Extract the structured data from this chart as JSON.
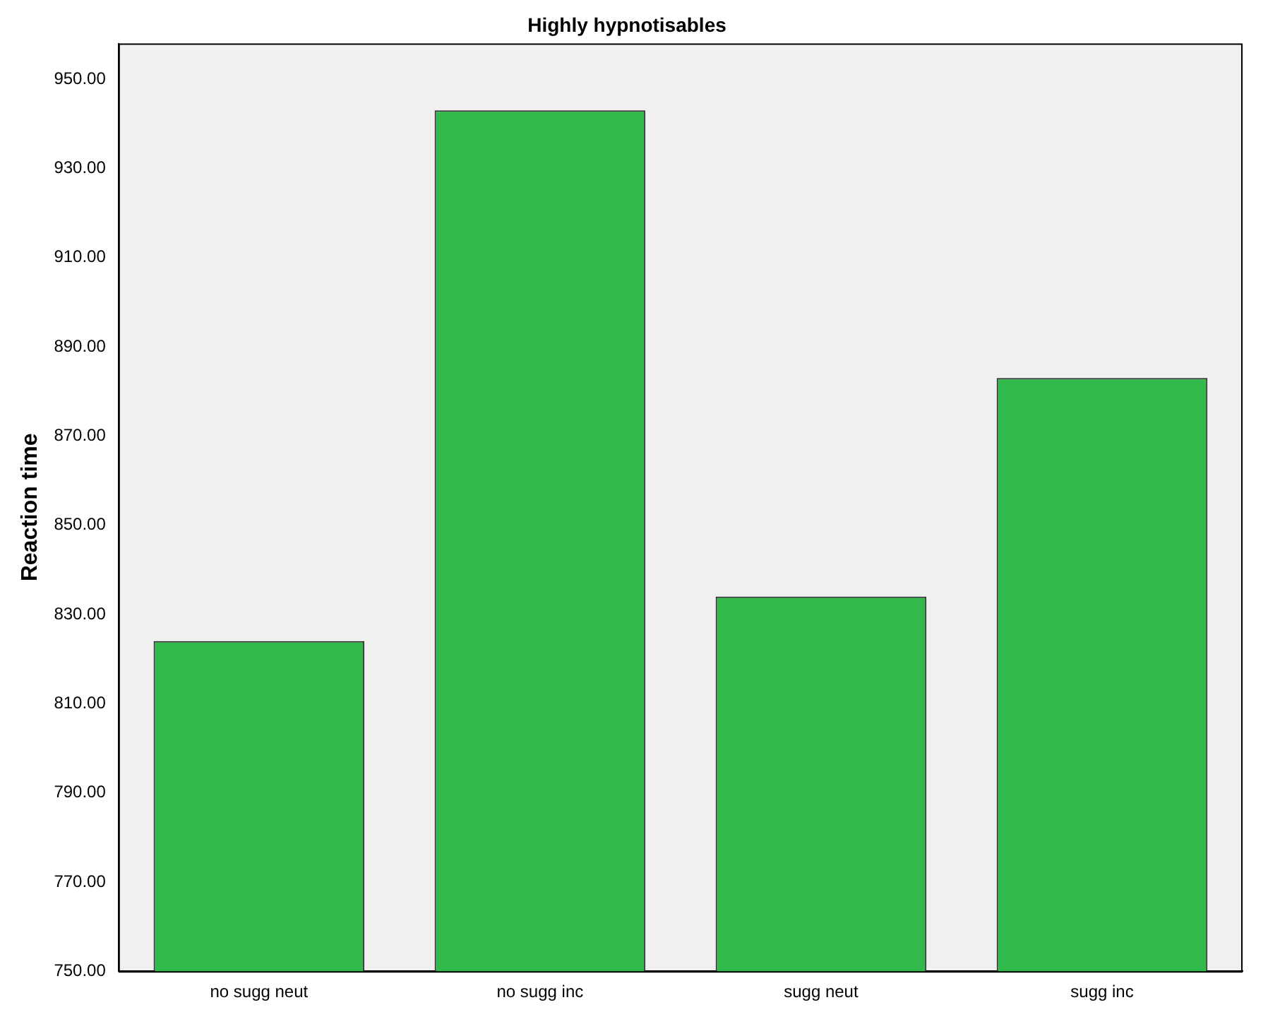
{
  "chart_data": {
    "type": "bar",
    "title": "Highly hypnotisables",
    "ylabel": "Reaction time",
    "categories": [
      "no sugg neut",
      "no sugg inc",
      "sugg neut",
      "sugg inc"
    ],
    "values": [
      824,
      943,
      834,
      883
    ],
    "color": "#31b94c",
    "ylim": [
      750,
      958
    ],
    "yticks": [
      {
        "value": 750,
        "label": "750.00"
      },
      {
        "value": 770,
        "label": "770.00"
      },
      {
        "value": 790,
        "label": "790.00"
      },
      {
        "value": 810,
        "label": "810.00"
      },
      {
        "value": 830,
        "label": "830.00"
      },
      {
        "value": 850,
        "label": "850.00"
      },
      {
        "value": 870,
        "label": "870.00"
      },
      {
        "value": 890,
        "label": "890.00"
      },
      {
        "value": 910,
        "label": "910.00"
      },
      {
        "value": 930,
        "label": "930.00"
      },
      {
        "value": 950,
        "label": "950.00"
      }
    ],
    "grid": false,
    "legend": false
  }
}
